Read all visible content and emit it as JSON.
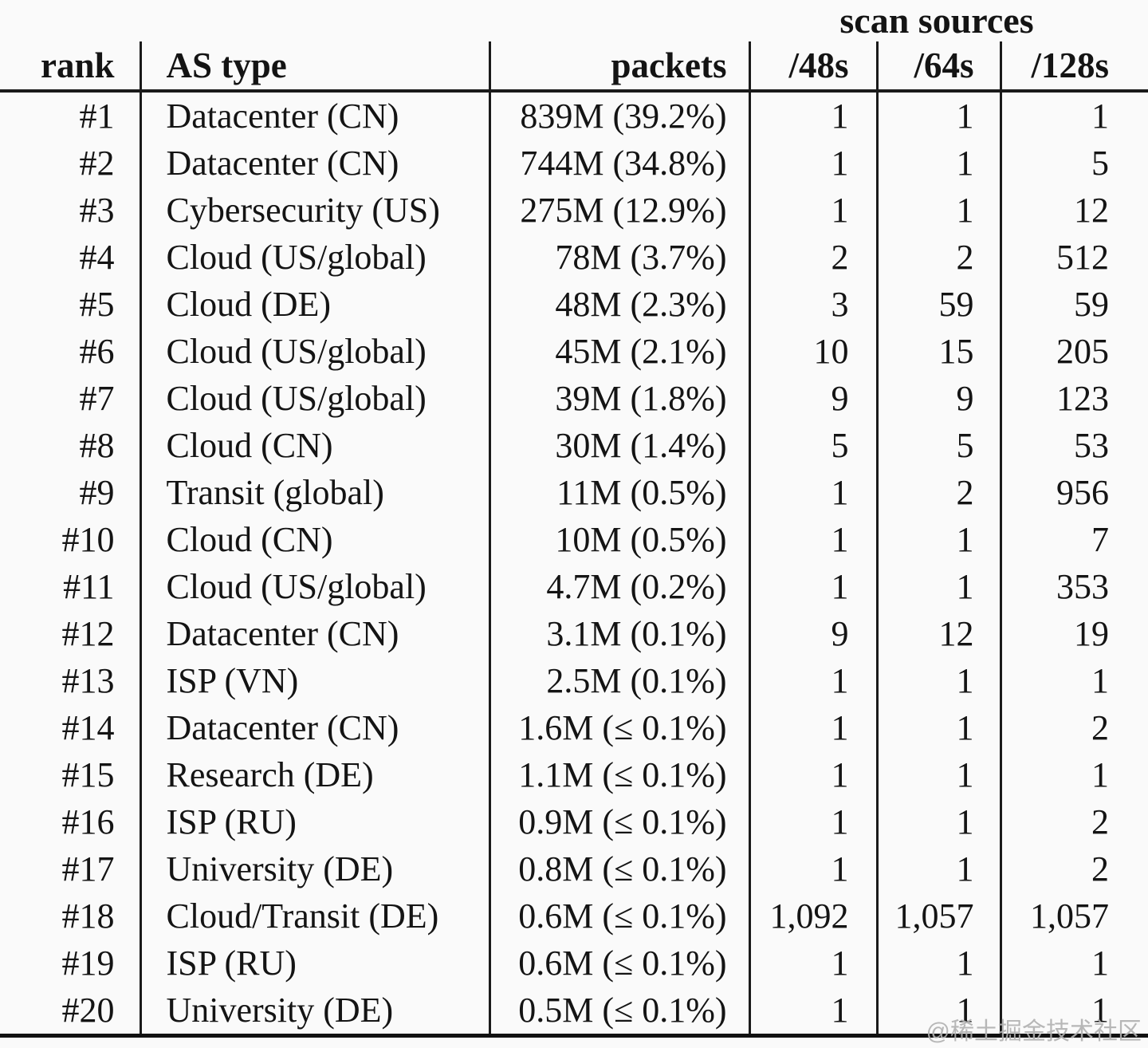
{
  "table": {
    "group_header": "scan sources",
    "columns": {
      "rank": "rank",
      "as_type": "AS type",
      "packets": "packets",
      "s48": "/48s",
      "s64": "/64s",
      "s128": "/128s"
    },
    "rows": [
      {
        "rank": "#1",
        "as_type": "Datacenter (CN)",
        "packets": "839M (39.2%)",
        "s48": "1",
        "s64": "1",
        "s128": "1"
      },
      {
        "rank": "#2",
        "as_type": "Datacenter (CN)",
        "packets": "744M (34.8%)",
        "s48": "1",
        "s64": "1",
        "s128": "5"
      },
      {
        "rank": "#3",
        "as_type": "Cybersecurity (US)",
        "packets": "275M (12.9%)",
        "s48": "1",
        "s64": "1",
        "s128": "12"
      },
      {
        "rank": "#4",
        "as_type": "Cloud (US/global)",
        "packets": "78M (3.7%)",
        "s48": "2",
        "s64": "2",
        "s128": "512"
      },
      {
        "rank": "#5",
        "as_type": "Cloud (DE)",
        "packets": "48M (2.3%)",
        "s48": "3",
        "s64": "59",
        "s128": "59"
      },
      {
        "rank": "#6",
        "as_type": "Cloud (US/global)",
        "packets": "45M (2.1%)",
        "s48": "10",
        "s64": "15",
        "s128": "205"
      },
      {
        "rank": "#7",
        "as_type": "Cloud (US/global)",
        "packets": "39M (1.8%)",
        "s48": "9",
        "s64": "9",
        "s128": "123"
      },
      {
        "rank": "#8",
        "as_type": "Cloud (CN)",
        "packets": "30M (1.4%)",
        "s48": "5",
        "s64": "5",
        "s128": "53"
      },
      {
        "rank": "#9",
        "as_type": "Transit (global)",
        "packets": "11M (0.5%)",
        "s48": "1",
        "s64": "2",
        "s128": "956"
      },
      {
        "rank": "#10",
        "as_type": "Cloud (CN)",
        "packets": "10M (0.5%)",
        "s48": "1",
        "s64": "1",
        "s128": "7"
      },
      {
        "rank": "#11",
        "as_type": "Cloud (US/global)",
        "packets": "4.7M (0.2%)",
        "s48": "1",
        "s64": "1",
        "s128": "353"
      },
      {
        "rank": "#12",
        "as_type": "Datacenter (CN)",
        "packets": "3.1M (0.1%)",
        "s48": "9",
        "s64": "12",
        "s128": "19"
      },
      {
        "rank": "#13",
        "as_type": "ISP (VN)",
        "packets": "2.5M (0.1%)",
        "s48": "1",
        "s64": "1",
        "s128": "1"
      },
      {
        "rank": "#14",
        "as_type": "Datacenter (CN)",
        "packets": "1.6M (≤ 0.1%)",
        "s48": "1",
        "s64": "1",
        "s128": "2"
      },
      {
        "rank": "#15",
        "as_type": "Research (DE)",
        "packets": "1.1M (≤ 0.1%)",
        "s48": "1",
        "s64": "1",
        "s128": "1"
      },
      {
        "rank": "#16",
        "as_type": "ISP (RU)",
        "packets": "0.9M (≤ 0.1%)",
        "s48": "1",
        "s64": "1",
        "s128": "2"
      },
      {
        "rank": "#17",
        "as_type": "University (DE)",
        "packets": "0.8M (≤ 0.1%)",
        "s48": "1",
        "s64": "1",
        "s128": "2"
      },
      {
        "rank": "#18",
        "as_type": "Cloud/Transit (DE)",
        "packets": "0.6M (≤ 0.1%)",
        "s48": "1,092",
        "s64": "1,057",
        "s128": "1,057"
      },
      {
        "rank": "#19",
        "as_type": "ISP (RU)",
        "packets": "0.6M (≤ 0.1%)",
        "s48": "1",
        "s64": "1",
        "s128": "1"
      },
      {
        "rank": "#20",
        "as_type": "University (DE)",
        "packets": "0.5M (≤ 0.1%)",
        "s48": "1",
        "s64": "1",
        "s128": "1"
      }
    ]
  },
  "watermark": {
    "text": "@稀土掘金技术社区"
  },
  "colors": {
    "text": "#141414",
    "rule": "#1a1a1a",
    "background": "#fafafa",
    "watermark": "#b0b0b0"
  }
}
